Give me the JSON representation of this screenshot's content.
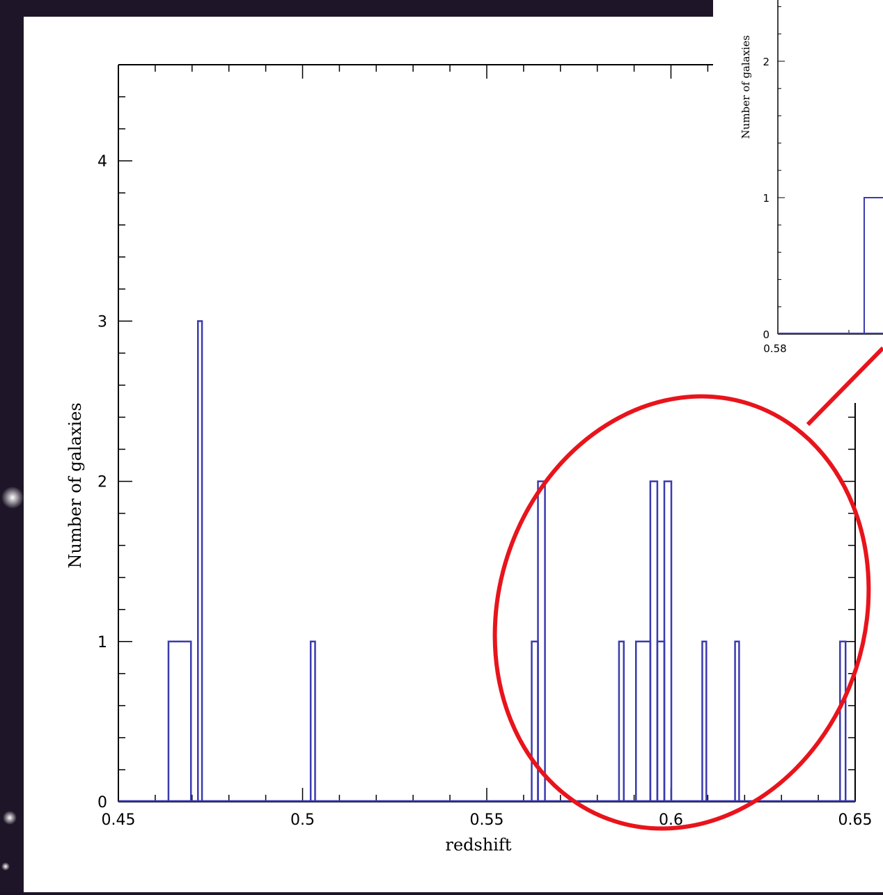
{
  "chart_data": [
    {
      "type": "bar",
      "histogram": true,
      "xlabel": "redshift",
      "ylabel": "Number of galaxies",
      "xlim": [
        0.45,
        0.65
      ],
      "ylim": [
        0,
        4.6
      ],
      "xticks": [
        {
          "value": 0.45,
          "label": "0.45"
        },
        {
          "value": 0.5,
          "label": "0.5"
        },
        {
          "value": 0.55,
          "label": "0.55"
        },
        {
          "value": 0.6,
          "label": "0.6"
        },
        {
          "value": 0.65,
          "label": "0.65"
        }
      ],
      "yticks": [
        {
          "value": 0,
          "label": "0"
        },
        {
          "value": 1,
          "label": "1"
        },
        {
          "value": 2,
          "label": "2"
        },
        {
          "value": 3,
          "label": "3"
        },
        {
          "value": 4,
          "label": "4"
        }
      ],
      "bins": [
        {
          "x0": 0.4636,
          "x1": 0.4697,
          "count": 1
        },
        {
          "x0": 0.4716,
          "x1": 0.4727,
          "count": 3
        },
        {
          "x0": 0.5022,
          "x1": 0.5034,
          "count": 1
        },
        {
          "x0": 0.5622,
          "x1": 0.5639,
          "count": 1
        },
        {
          "x0": 0.5639,
          "x1": 0.5658,
          "count": 2
        },
        {
          "x0": 0.5859,
          "x1": 0.5872,
          "count": 1
        },
        {
          "x0": 0.5905,
          "x1": 0.5944,
          "count": 1
        },
        {
          "x0": 0.5944,
          "x1": 0.5963,
          "count": 2
        },
        {
          "x0": 0.5963,
          "x1": 0.5982,
          "count": 1
        },
        {
          "x0": 0.5982,
          "x1": 0.6001,
          "count": 2
        },
        {
          "x0": 0.6085,
          "x1": 0.6096,
          "count": 1
        },
        {
          "x0": 0.6174,
          "x1": 0.6185,
          "count": 1
        },
        {
          "x0": 0.6459,
          "x1": 0.6474,
          "count": 1
        }
      ],
      "bar_color": "#3a3ab0"
    },
    {
      "type": "bar",
      "histogram": true,
      "inset": true,
      "ylabel": "Number of galaxies",
      "xticks": [
        {
          "value": 0.58,
          "label": "0.58"
        }
      ],
      "yticks": [
        {
          "value": 0,
          "label": "0"
        },
        {
          "value": 1,
          "label": "1"
        },
        {
          "value": 2,
          "label": "2"
        }
      ],
      "bins": [
        {
          "x0": 0.5822,
          "x1": 0.5838,
          "count": 1
        }
      ]
    }
  ],
  "annotation": {
    "shape": "ellipse",
    "color": "#e8141c"
  }
}
